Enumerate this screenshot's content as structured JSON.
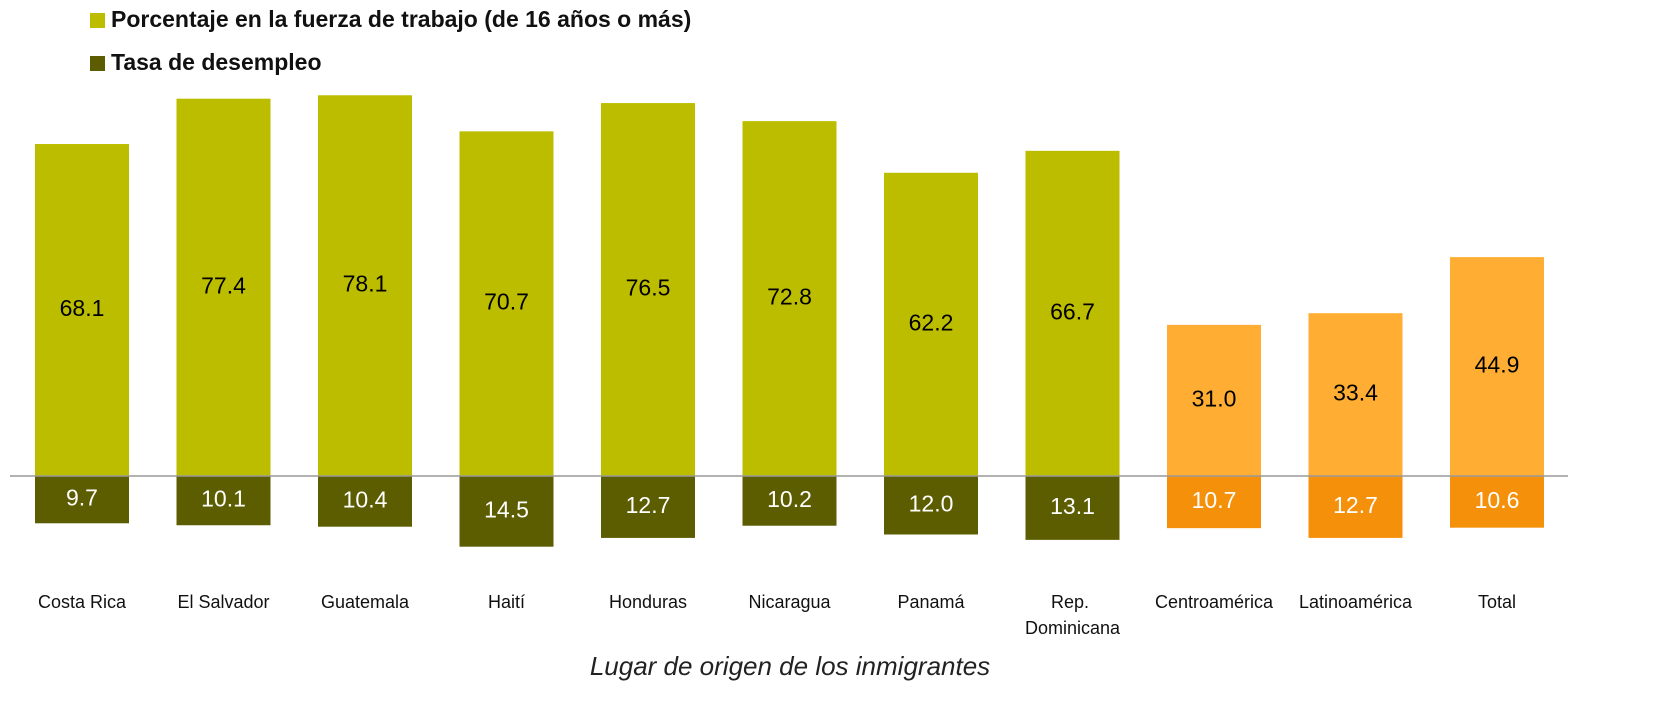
{
  "chart_data": {
    "type": "bar",
    "x_label": "Lugar de origen de los inmigrantes",
    "categories": [
      "Costa Rica",
      "El Salvador",
      "Guatemala",
      "Haití",
      "Honduras",
      "Nicaragua",
      "Panamá",
      "Rep. Dominicana",
      "Centroamérica",
      "Latinoamérica",
      "Total"
    ],
    "series": [
      {
        "name": "Porcentaje en la fuerza de trabajo (de 16 años o más)",
        "color": "#bdbd00",
        "direction": "up",
        "colors": [
          "#bdbd00",
          "#bdbd00",
          "#bdbd00",
          "#bdbd00",
          "#bdbd00",
          "#bdbd00",
          "#bdbd00",
          "#bdbd00",
          "#ffad33",
          "#ffad33",
          "#ffad33"
        ],
        "label_colors": [
          "#000",
          "#000",
          "#000",
          "#000",
          "#000",
          "#000",
          "#000",
          "#000",
          "#000",
          "#000",
          "#000"
        ],
        "values": [
          68.1,
          77.4,
          78.1,
          70.7,
          76.5,
          72.8,
          62.2,
          66.7,
          31.0,
          33.4,
          44.9
        ],
        "value_labels": [
          "68.1",
          "77.4",
          "78.1",
          "70.7",
          "76.5",
          "72.8",
          "62.2",
          "66.7",
          "31.0",
          "33.4",
          "44.9"
        ]
      },
      {
        "name": "Tasa de desempleo",
        "color": "#5c5c00",
        "direction": "down",
        "colors": [
          "#5c5c00",
          "#5c5c00",
          "#5c5c00",
          "#5c5c00",
          "#5c5c00",
          "#5c5c00",
          "#5c5c00",
          "#5c5c00",
          "#f5900a",
          "#f5900a",
          "#f5900a"
        ],
        "label_colors": [
          "#fff",
          "#fff",
          "#fff",
          "#fff",
          "#fff",
          "#fff",
          "#fff",
          "#fff",
          "#fff",
          "#fff",
          "#fff"
        ],
        "values": [
          9.7,
          10.1,
          10.4,
          14.5,
          12.7,
          10.2,
          12.0,
          13.1,
          10.7,
          12.7,
          10.6
        ],
        "value_labels": [
          "9.7",
          "10.1",
          "10.4",
          "14.5",
          "12.7",
          "10.2",
          "12.0",
          "13.1",
          "10.7",
          "12.7",
          "10.6"
        ]
      }
    ]
  }
}
